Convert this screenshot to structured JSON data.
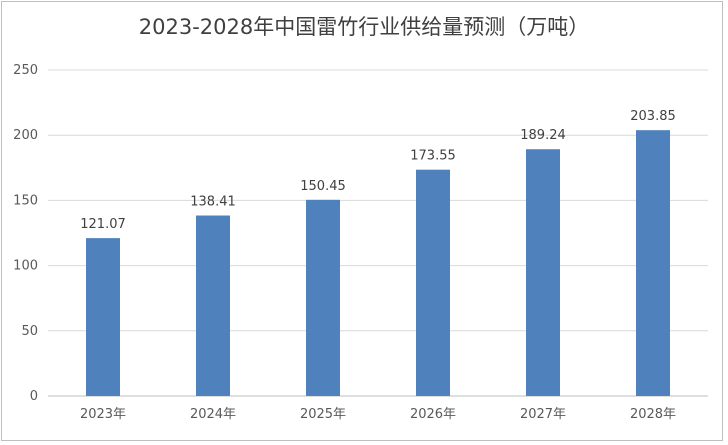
{
  "chart_data": {
    "type": "bar",
    "title": "2023-2028年中国雷竹行业供给量预测（万吨）",
    "xlabel": "",
    "ylabel": "",
    "categories": [
      "2023年",
      "2024年",
      "2025年",
      "2026年",
      "2027年",
      "2028年"
    ],
    "values": [
      121.07,
      138.41,
      150.45,
      173.55,
      189.24,
      203.85
    ],
    "data_labels": [
      "121.07",
      "138.41",
      "150.45",
      "173.55",
      "189.24",
      "203.85"
    ],
    "ylim": [
      0,
      250
    ],
    "yticks": [
      0,
      50,
      100,
      150,
      200,
      250
    ],
    "grid": true,
    "legend": "none",
    "bar_color": "#4f81bd",
    "grid_color": "#d9d9d9"
  }
}
